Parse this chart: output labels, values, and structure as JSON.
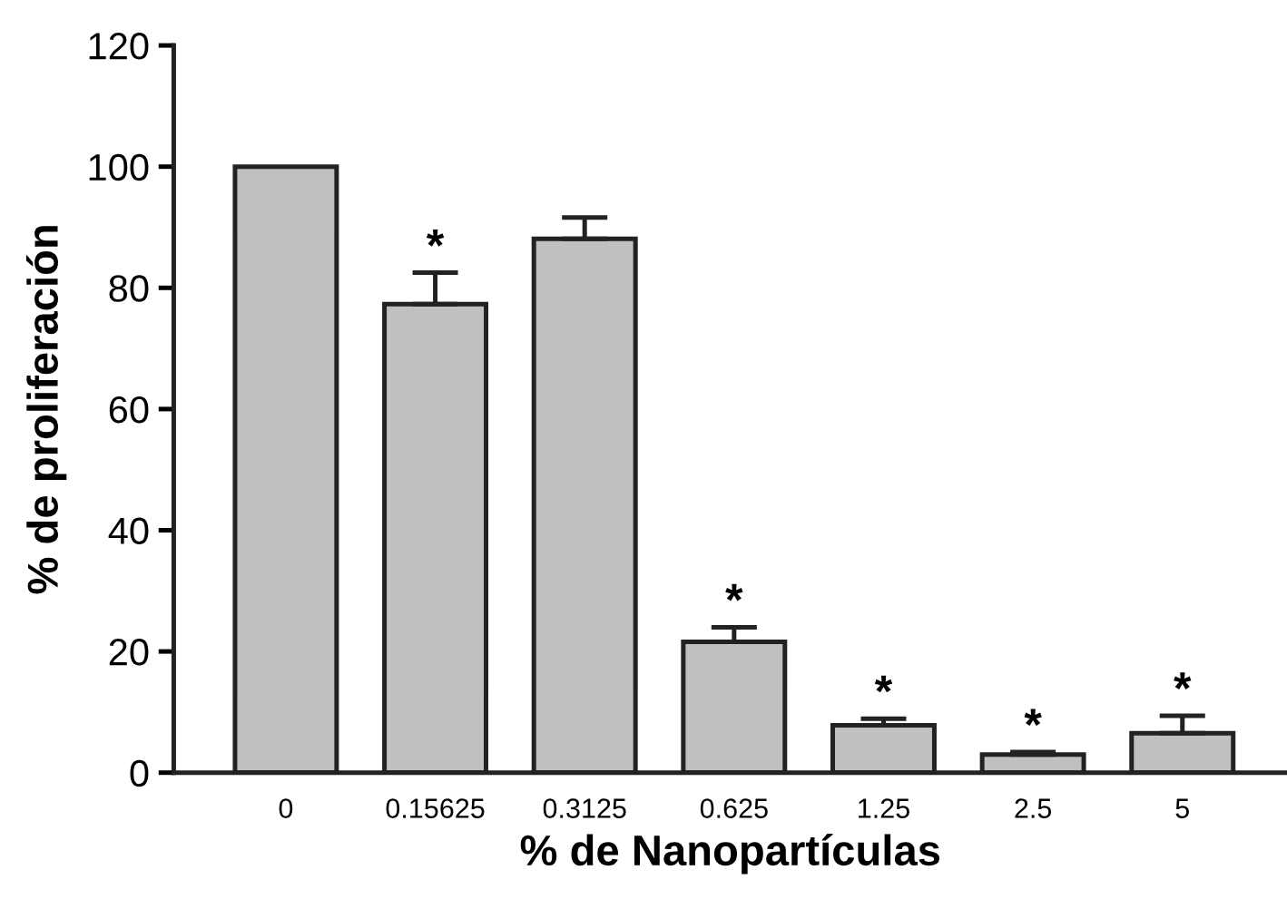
{
  "chart_data": {
    "type": "bar",
    "xlabel": "% de Nanopartículas",
    "ylabel": "% de proliferación",
    "categories": [
      "0",
      "0.15625",
      "0.3125",
      "0.625",
      "1.25",
      "2.5",
      "5"
    ],
    "values": [
      100,
      77.3,
      88.1,
      21.6,
      7.8,
      3.0,
      6.5
    ],
    "errors": [
      null,
      5.2,
      3.5,
      2.4,
      1.1,
      0.4,
      2.9
    ],
    "color": "#c0c0c0",
    "ylim": [
      0,
      120
    ],
    "yticks": [
      0,
      20,
      40,
      60,
      80,
      100,
      120
    ],
    "grid": false,
    "annotations": [
      {
        "text": "*",
        "x": "0.15625",
        "y": 82.5
      },
      {
        "text": "*",
        "x": "0.625",
        "y": 24.0
      },
      {
        "text": "*",
        "x": "1.25",
        "y": 8.9
      },
      {
        "text": "*",
        "x": "2.5",
        "y": 3.4
      },
      {
        "text": "*",
        "x": "5",
        "y": 9.4
      }
    ]
  }
}
